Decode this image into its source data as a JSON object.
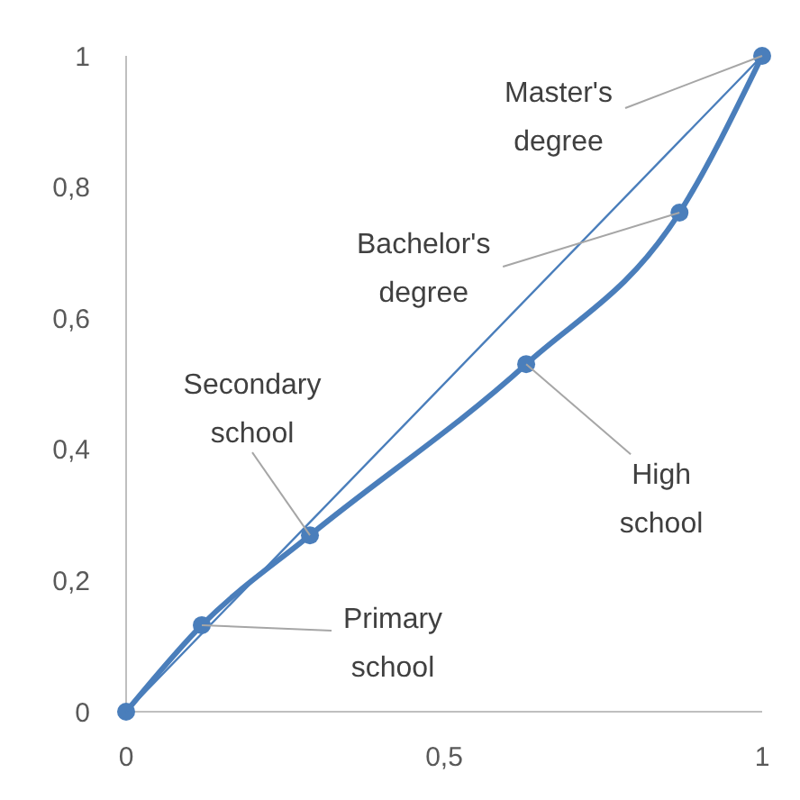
{
  "chart_data": {
    "type": "line",
    "x": [
      0,
      0.119,
      0.289,
      0.629,
      0.87,
      1
    ],
    "series": [
      {
        "color": "#4a7ebb",
        "values": [
          0,
          0.132,
          0.269,
          0.53,
          0.761,
          1
        ],
        "marker": "circle"
      },
      {
        "color": "#4a7ebb",
        "x": [
          0,
          1
        ],
        "values": [
          0,
          1
        ],
        "marker": "none"
      }
    ],
    "xlim": [
      0,
      1
    ],
    "xticks": [
      0,
      {
        "value": 0.5,
        "label": "0,5"
      },
      1
    ],
    "ylim": [
      0,
      1
    ],
    "yticks": [
      0,
      {
        "value": 0.2,
        "label": "0,2"
      },
      {
        "value": 0.4,
        "label": "0,4"
      },
      {
        "value": 0.6,
        "label": "0,6"
      },
      {
        "value": 0.8,
        "label": "0,8"
      },
      1
    ],
    "grid": false,
    "annotations": [
      {
        "text": "Primary school",
        "x": 0.119,
        "y": 0.132
      },
      {
        "text": "Secondary school",
        "x": 0.289,
        "y": 0.269
      },
      {
        "text": "High school",
        "x": 0.629,
        "y": 0.53
      },
      {
        "text": "Bachelor's degree",
        "x": 0.87,
        "y": 0.761
      },
      {
        "text": "Master's degree",
        "x": 1,
        "y": 1
      }
    ]
  }
}
